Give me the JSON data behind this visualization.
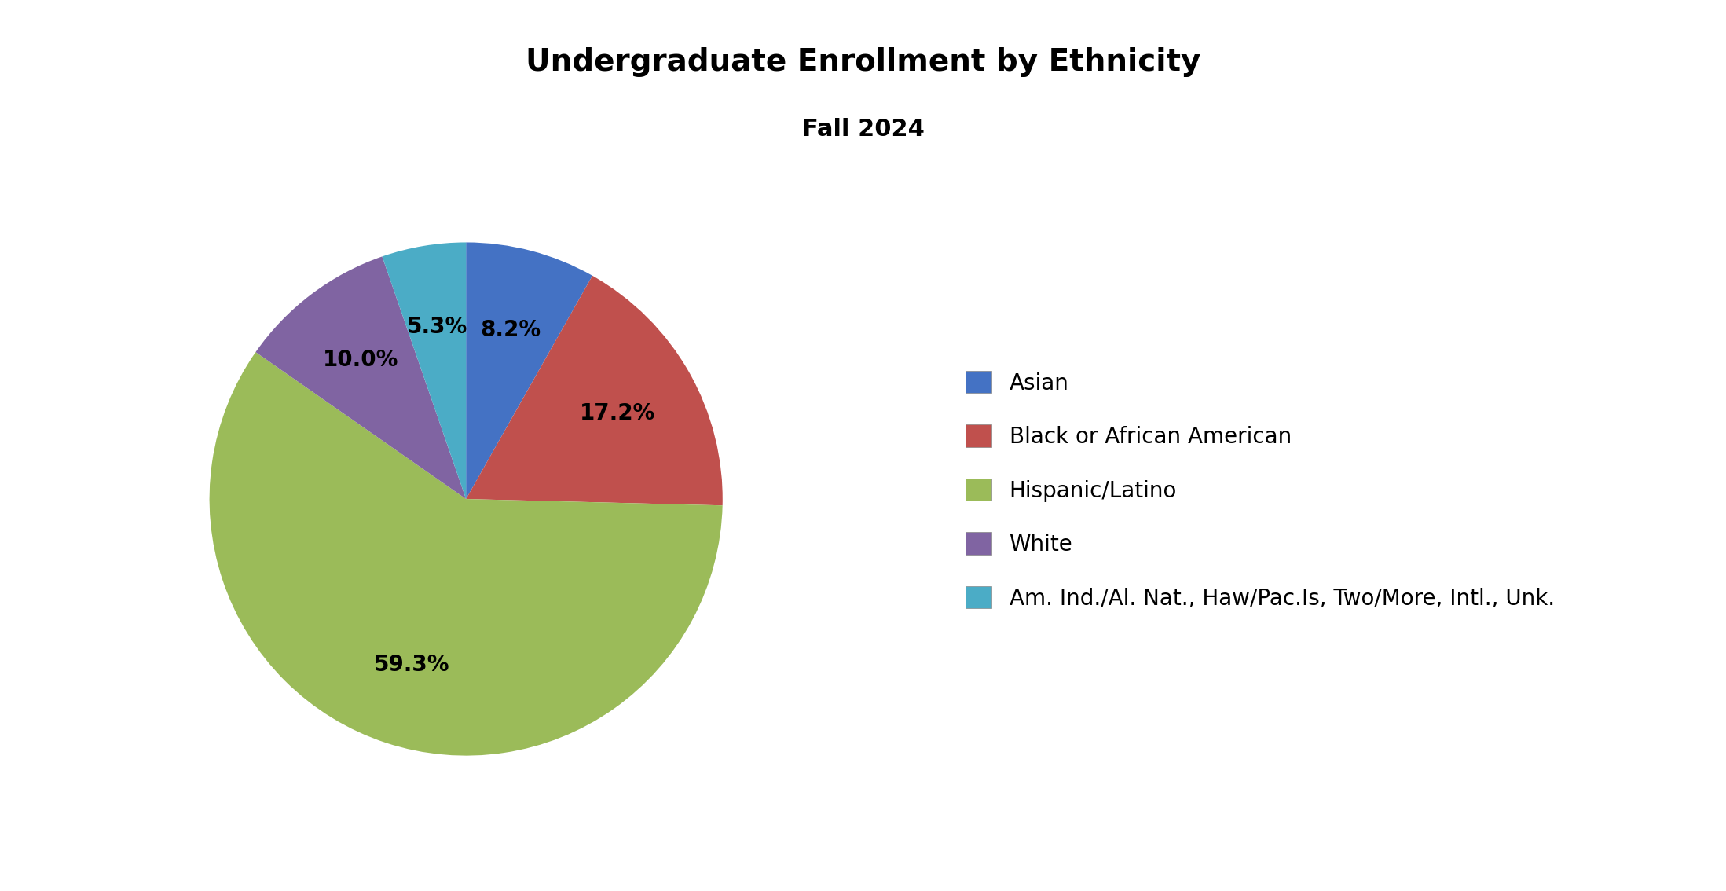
{
  "title": "Undergraduate Enrollment by Ethnicity",
  "subtitle": "Fall 2024",
  "labels": [
    "Asian",
    "Black or African American",
    "Hispanic/Latino",
    "White",
    "Am. Ind./Al. Nat., Haw/Pac.Is, Two/More, Intl., Unk."
  ],
  "values": [
    8.2,
    17.2,
    59.3,
    10.0,
    5.3
  ],
  "colors": [
    "#4472C4",
    "#C0504D",
    "#9BBB59",
    "#8064A2",
    "#4BACC6"
  ],
  "pct_labels": [
    "8.2%",
    "17.2%",
    "59.3%",
    "10.0%",
    "5.3%"
  ],
  "title_fontsize": 28,
  "subtitle_fontsize": 22,
  "legend_fontsize": 20,
  "pct_fontsize": 20,
  "background_color": "#FFFFFF"
}
